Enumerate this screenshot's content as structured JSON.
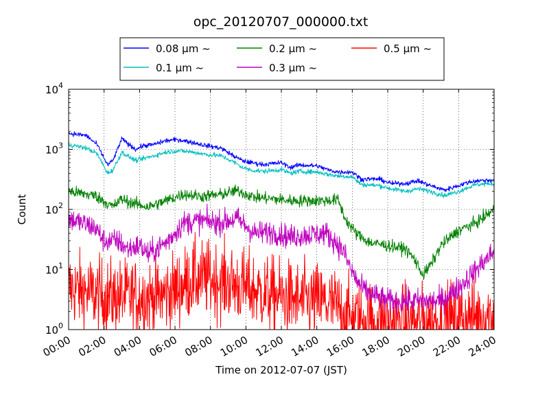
{
  "chart_data": {
    "type": "line",
    "title": "opc_20120707_000000.txt",
    "xlabel": "Time on 2012-07-07 (JST)",
    "ylabel": "Count",
    "yscale": "log",
    "ylim": [
      1,
      10000
    ],
    "xlim": [
      "00:00",
      "24:00"
    ],
    "x_ticks": [
      "00:00",
      "02:00",
      "04:00",
      "06:00",
      "08:00",
      "10:00",
      "12:00",
      "14:00",
      "16:00",
      "18:00",
      "20:00",
      "22:00",
      "24:00"
    ],
    "y_ticks": [
      {
        "value": 1,
        "base": "10",
        "exp": "0"
      },
      {
        "value": 10,
        "base": "10",
        "exp": "1"
      },
      {
        "value": 100,
        "base": "10",
        "exp": "2"
      },
      {
        "value": 1000,
        "base": "10",
        "exp": "3"
      },
      {
        "value": 10000,
        "base": "10",
        "exp": "4"
      }
    ],
    "grid": true,
    "legend_position": "top-center",
    "series": [
      {
        "name": "0.08 μm ~",
        "color": "#0000ff",
        "noise": 0.02,
        "x": [
          0,
          1,
          1.6,
          2.2,
          2.5,
          3.0,
          3.4,
          3.8,
          4.2,
          4.8,
          5.5,
          6.2,
          7.0,
          7.8,
          8.6,
          9.3,
          9.8,
          10.3,
          11,
          12,
          12.5,
          13,
          14,
          14.7,
          15.2,
          16,
          16.5,
          17.5,
          18.2,
          19,
          19.7,
          20.4,
          21.2,
          22,
          22.5,
          23,
          24
        ],
        "y": [
          1850,
          1700,
          1200,
          550,
          650,
          1500,
          1200,
          1000,
          1150,
          1200,
          1400,
          1450,
          1300,
          1150,
          1050,
          780,
          650,
          600,
          560,
          600,
          500,
          550,
          530,
          450,
          420,
          420,
          320,
          320,
          270,
          270,
          300,
          250,
          210,
          250,
          280,
          300,
          310
        ]
      },
      {
        "name": "0.1 μm ~",
        "color": "#00bfbf",
        "noise": 0.02,
        "x": [
          0,
          1,
          1.6,
          2.2,
          2.5,
          3.0,
          3.4,
          3.8,
          4.2,
          4.8,
          5.5,
          6.2,
          7.0,
          7.8,
          8.6,
          9.3,
          9.8,
          10.3,
          11,
          12,
          12.5,
          13,
          14,
          14.7,
          15.2,
          16,
          16.5,
          17.5,
          18.2,
          19,
          19.7,
          20.4,
          21.2,
          22,
          22.5,
          23,
          24
        ],
        "y": [
          1200,
          1050,
          850,
          400,
          450,
          900,
          750,
          650,
          700,
          780,
          900,
          950,
          900,
          820,
          780,
          620,
          500,
          450,
          430,
          460,
          400,
          430,
          420,
          380,
          360,
          350,
          260,
          250,
          220,
          200,
          220,
          200,
          170,
          200,
          230,
          260,
          270
        ]
      },
      {
        "name": "0.2 μm ~",
        "color": "#008000",
        "noise": 0.05,
        "x": [
          0,
          1.5,
          2.5,
          3.0,
          3.5,
          4.5,
          5.2,
          6.5,
          7.5,
          8.5,
          9.5,
          10.5,
          11.5,
          12.5,
          13.5,
          14.5,
          15.2,
          15.6,
          16.2,
          17.0,
          18.0,
          19.0,
          19.5,
          20.0,
          20.5,
          21.0,
          22.0,
          23.0,
          24.0
        ],
        "y": [
          200,
          170,
          110,
          150,
          130,
          110,
          130,
          180,
          165,
          175,
          205,
          160,
          150,
          140,
          140,
          140,
          145,
          70,
          40,
          28,
          25,
          22,
          15,
          8,
          13,
          25,
          45,
          60,
          100
        ]
      },
      {
        "name": "0.3 μm ~",
        "color": "#bf00bf",
        "noise": 0.1,
        "x": [
          0,
          1.5,
          2.0,
          2.8,
          3.3,
          4.0,
          4.5,
          5.5,
          6.5,
          7.5,
          8.5,
          9.5,
          10.5,
          11.5,
          12.5,
          13.5,
          14.5,
          15.0,
          15.5,
          16.0,
          16.5,
          17.0,
          18.0,
          19.0,
          20.0,
          21.0,
          22.0,
          23.0,
          24.0
        ],
        "y": [
          70,
          50,
          30,
          30,
          22,
          25,
          18,
          28,
          60,
          65,
          60,
          70,
          40,
          42,
          35,
          38,
          40,
          30,
          20,
          9,
          5,
          4,
          3,
          3,
          3,
          3,
          5,
          10,
          20
        ]
      },
      {
        "name": "0.5 μm ~",
        "color": "#ff0000",
        "noise": 0.32,
        "x": [
          0,
          2,
          3,
          4,
          5,
          6,
          7,
          8,
          9,
          10,
          11,
          12,
          13,
          14,
          15,
          16,
          18,
          20,
          22,
          24
        ],
        "y": [
          5,
          3.5,
          3.5,
          3.5,
          3.5,
          4.5,
          7,
          7,
          6,
          5,
          4,
          3.5,
          3,
          3,
          2.5,
          1.5,
          1.3,
          1.3,
          1.5,
          1.8
        ]
      }
    ]
  }
}
